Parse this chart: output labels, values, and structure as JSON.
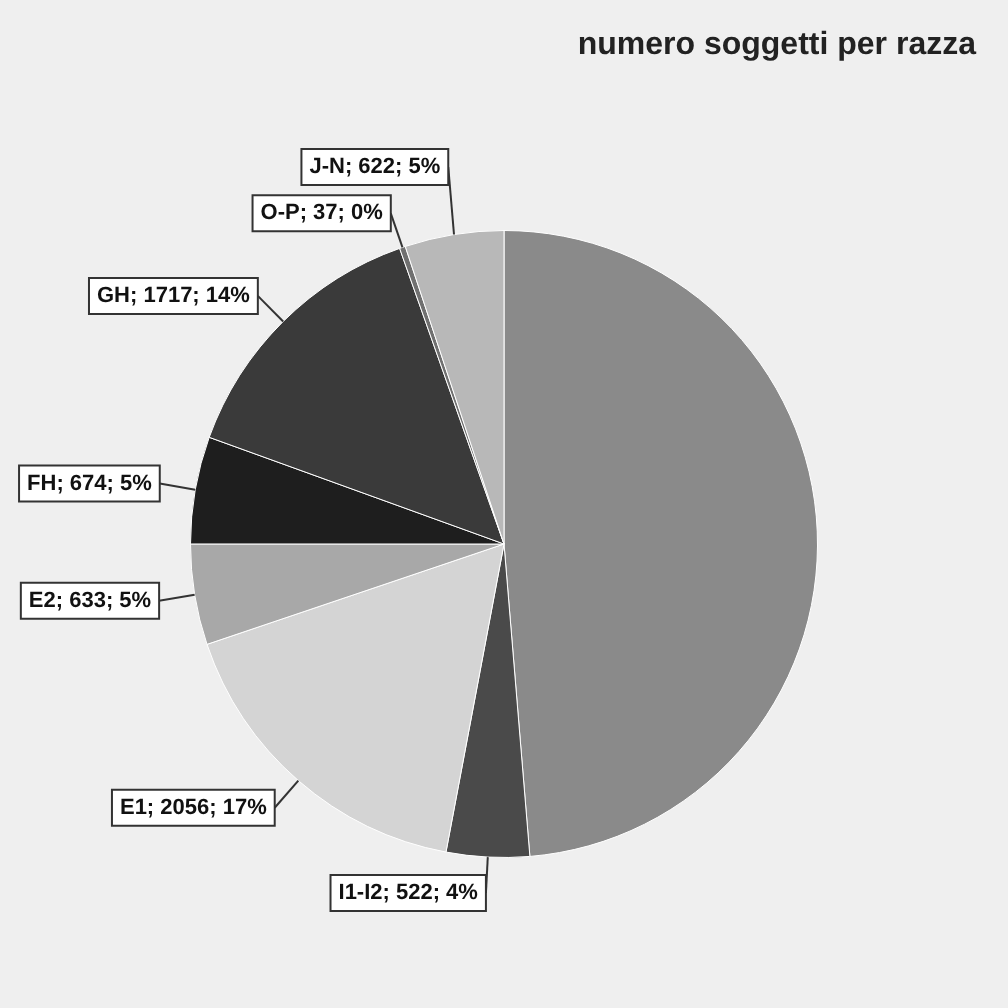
{
  "chart_data": {
    "type": "pie",
    "title": "numero soggetti per razza",
    "categories": [
      null,
      "I1-I2",
      "E1",
      "E2",
      "FH",
      "GH",
      "O-P",
      "J-N"
    ],
    "values": [
      5940,
      522,
      2056,
      633,
      674,
      1717,
      37,
      622
    ],
    "colors": [
      "#8a8a8a",
      "#4a4a4a",
      "#d4d4d4",
      "#a8a8a8",
      "#1e1e1e",
      "#3a3a3a",
      "#707070",
      "#b8b8b8"
    ],
    "value_labels": [
      null,
      "522; 4%",
      "2056; 17%",
      "633; 5%",
      "674; 5%",
      "1717; 14%",
      "37; 0%",
      "622; 5%"
    ],
    "legend": false
  }
}
